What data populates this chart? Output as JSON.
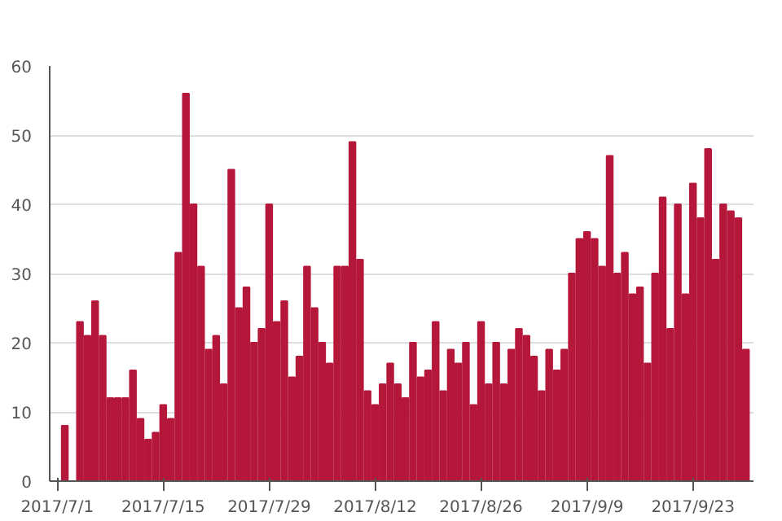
{
  "chart_data": {
    "type": "bar",
    "color": "#b5173a",
    "grid": "y",
    "x": [
      "2017-07-01",
      "2017-07-02",
      "2017-07-03",
      "2017-07-04",
      "2017-07-05",
      "2017-07-06",
      "2017-07-07",
      "2017-07-08",
      "2017-07-09",
      "2017-07-10",
      "2017-07-11",
      "2017-07-12",
      "2017-07-13",
      "2017-07-14",
      "2017-07-15",
      "2017-07-16",
      "2017-07-17",
      "2017-07-18",
      "2017-07-19",
      "2017-07-20",
      "2017-07-21",
      "2017-07-22",
      "2017-07-23",
      "2017-07-24",
      "2017-07-25",
      "2017-07-26",
      "2017-07-27",
      "2017-07-28",
      "2017-07-29",
      "2017-07-30",
      "2017-07-31",
      "2017-08-01",
      "2017-08-02",
      "2017-08-03",
      "2017-08-04",
      "2017-08-05",
      "2017-08-06",
      "2017-08-07",
      "2017-08-08",
      "2017-08-09",
      "2017-08-10",
      "2017-08-11",
      "2017-08-12",
      "2017-08-13",
      "2017-08-14",
      "2017-08-15",
      "2017-08-16",
      "2017-08-17",
      "2017-08-18",
      "2017-08-19",
      "2017-08-20",
      "2017-08-21",
      "2017-08-22",
      "2017-08-23",
      "2017-08-24",
      "2017-08-25",
      "2017-08-26",
      "2017-08-27",
      "2017-08-28",
      "2017-08-29",
      "2017-08-30",
      "2017-08-31",
      "2017-09-01",
      "2017-09-02",
      "2017-09-03",
      "2017-09-04",
      "2017-09-05",
      "2017-09-06",
      "2017-09-07",
      "2017-09-08",
      "2017-09-09",
      "2017-09-10",
      "2017-09-11",
      "2017-09-12",
      "2017-09-13",
      "2017-09-14",
      "2017-09-15",
      "2017-09-16",
      "2017-09-17",
      "2017-09-18",
      "2017-09-19",
      "2017-09-20",
      "2017-09-21",
      "2017-09-22",
      "2017-09-23",
      "2017-09-24",
      "2017-09-25",
      "2017-09-26",
      "2017-09-27",
      "2017-09-28",
      "2017-09-29",
      "2017-09-30"
    ],
    "values": [
      0,
      8,
      0,
      23,
      21,
      26,
      21,
      12,
      12,
      12,
      16,
      9,
      6,
      7,
      11,
      9,
      33,
      56,
      40,
      31,
      19,
      21,
      14,
      45,
      25,
      28,
      20,
      22,
      40,
      23,
      26,
      15,
      18,
      31,
      25,
      20,
      17,
      31,
      31,
      49,
      32,
      13,
      11,
      14,
      17,
      14,
      12,
      20,
      15,
      16,
      23,
      13,
      19,
      17,
      20,
      11,
      23,
      14,
      20,
      14,
      19,
      22,
      21,
      18,
      13,
      19,
      16,
      19,
      30,
      35,
      36,
      35,
      31,
      47,
      30,
      33,
      27,
      28,
      17,
      30,
      41,
      22,
      40,
      27,
      43,
      38,
      48,
      32,
      40,
      39,
      38,
      19
    ],
    "xlim": [
      "2017-06-30",
      "2017-10-01"
    ],
    "xticks": [
      {
        "value": "2017-07-01",
        "label": "2017/7/1"
      },
      {
        "value": "2017-07-15",
        "label": "2017/7/15"
      },
      {
        "value": "2017-07-29",
        "label": "2017/7/29"
      },
      {
        "value": "2017-08-12",
        "label": "2017/8/12"
      },
      {
        "value": "2017-08-26",
        "label": "2017/8/26"
      },
      {
        "value": "2017-09-09",
        "label": "2017/9/9"
      },
      {
        "value": "2017-09-23",
        "label": "2017/9/23"
      }
    ],
    "ylim": [
      0,
      60
    ],
    "yticks": [
      0,
      10,
      20,
      30,
      40,
      50,
      60
    ]
  }
}
